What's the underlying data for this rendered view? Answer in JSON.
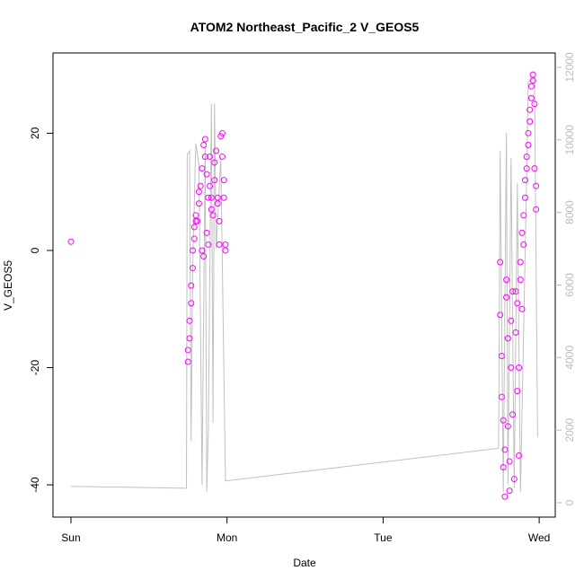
{
  "chart_data": {
    "type": "scatter",
    "title": "ATOM2 Northeast_Pacific_2 V_GEOS5",
    "x_label": "Date",
    "y_label": "V_GEOS5",
    "xlim": [
      -0.115,
      3.103
    ],
    "ylim": [
      -45.5,
      33.7
    ],
    "y2lim": [
      -396,
      12395
    ],
    "xticks": [
      {
        "value": 0,
        "label": "Sun"
      },
      {
        "value": 1,
        "label": "Mon"
      },
      {
        "value": 2,
        "label": "Tue"
      },
      {
        "value": 3,
        "label": "Wed"
      }
    ],
    "yticks": [
      -40,
      -20,
      0,
      20
    ],
    "y2ticks": [
      0,
      2000,
      4000,
      6000,
      8000,
      10000,
      12000
    ],
    "series": [
      {
        "name": "V_GEOS5",
        "color": "#ff00ff",
        "x": [
          0,
          0.75,
          0.75,
          0.76,
          0.76,
          0.77,
          0.77,
          0.78,
          0.78,
          0.79,
          0.79,
          0.8,
          0.8,
          0.81,
          0.82,
          0.82,
          0.83,
          0.84,
          0.84,
          0.85,
          0.85,
          0.86,
          0.86,
          0.87,
          0.87,
          0.88,
          0.88,
          0.89,
          0.89,
          0.9,
          0.9,
          0.91,
          0.92,
          0.92,
          0.93,
          0.94,
          0.94,
          0.95,
          0.95,
          0.96,
          0.97,
          0.97,
          0.98,
          0.98,
          0.99,
          0.99,
          2.75,
          2.75,
          2.76,
          2.76,
          2.77,
          2.77,
          2.78,
          2.78,
          2.79,
          2.79,
          2.8,
          2.8,
          2.81,
          2.81,
          2.82,
          2.82,
          2.83,
          2.83,
          2.84,
          2.85,
          2.85,
          2.86,
          2.86,
          2.87,
          2.87,
          2.88,
          2.88,
          2.89,
          2.89,
          2.9,
          2.9,
          2.91,
          2.91,
          2.92,
          2.92,
          2.93,
          2.93,
          2.94,
          2.94,
          2.95,
          2.95,
          2.96,
          2.96,
          2.97,
          2.97,
          2.98,
          2.98
        ],
        "values": [
          1.5,
          -19,
          -17,
          -15,
          -12,
          -9,
          -6,
          -3,
          0,
          2,
          4,
          5,
          6,
          5,
          8,
          10,
          11,
          14,
          0,
          -1,
          18,
          19,
          16,
          13,
          3,
          1,
          9,
          11,
          16,
          7,
          9,
          6,
          15,
          12,
          17,
          9,
          8,
          1,
          5,
          19.5,
          20,
          16,
          12,
          9,
          1,
          0,
          -2,
          -11,
          -18,
          -25,
          -29,
          -37,
          -42,
          -34,
          -5,
          -8,
          -15,
          -30,
          -36,
          -41,
          -12,
          -20,
          -7,
          -28,
          -39,
          -7,
          -14,
          -9,
          -24,
          -35,
          -20,
          -5,
          -2,
          3,
          -10,
          6,
          1,
          9,
          12,
          14,
          16,
          18,
          20,
          22,
          24,
          26,
          28,
          29,
          30,
          25,
          14,
          11,
          7
        ]
      },
      {
        "axis": "y2",
        "color": "#c0c0c0",
        "x": [
          0,
          0.74,
          0.745,
          0.76,
          0.77,
          0.78,
          0.8,
          0.82,
          0.84,
          0.86,
          0.87,
          0.88,
          0.9,
          0.91,
          0.92,
          0.93,
          0.96,
          0.99,
          2.74,
          2.75,
          2.77,
          2.79,
          2.8,
          2.82,
          2.84,
          2.86,
          2.88,
          2.92,
          2.93,
          2.97,
          2.99
        ],
        "values": [
          450,
          400,
          9600,
          9700,
          1700,
          6500,
          9900,
          9300,
          500,
          9800,
          300,
          2000,
          11000,
          2200,
          11000,
          7000,
          9500,
          600,
          1500,
          9700,
          300,
          10200,
          500,
          9500,
          400,
          8800,
          300,
          9000,
          11600,
          11700,
          1800
        ]
      }
    ]
  }
}
